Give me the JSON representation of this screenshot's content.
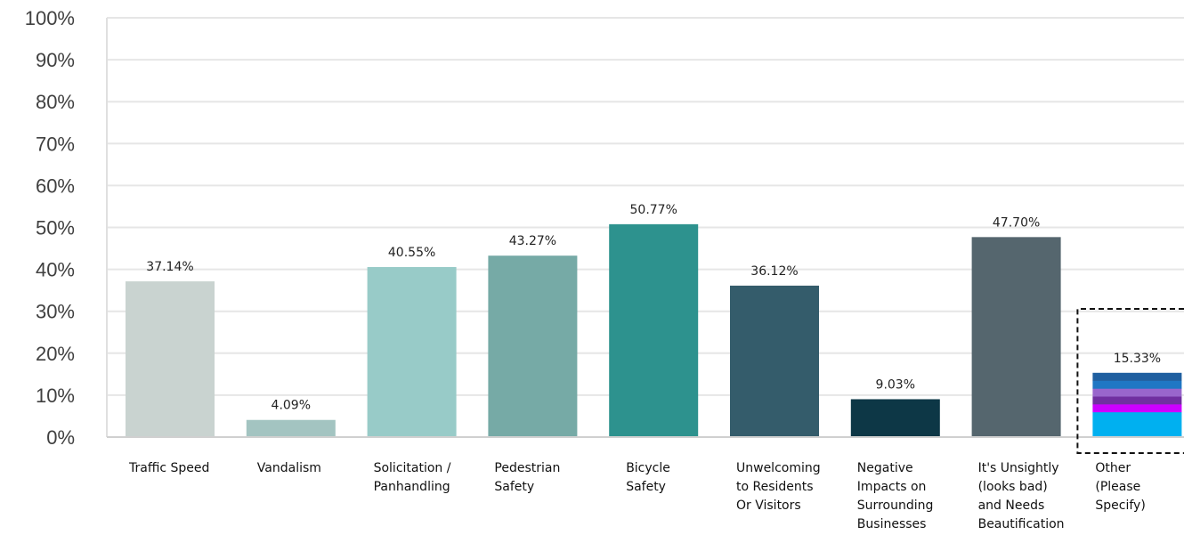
{
  "chart_data": {
    "type": "bar",
    "title": "",
    "xlabel": "",
    "ylabel": "",
    "ylim": [
      0,
      100
    ],
    "yticks": [
      "0%",
      "10%",
      "20%",
      "30%",
      "40%",
      "50%",
      "60%",
      "70%",
      "80%",
      "90%",
      "100%"
    ],
    "grid": true,
    "legend": "none",
    "categories": [
      [
        "Traffic Speed"
      ],
      [
        "Vandalism"
      ],
      [
        "Solicitation /",
        "Panhandling"
      ],
      [
        "Pedestrian",
        "Safety"
      ],
      [
        "Bicycle",
        "Safety"
      ],
      [
        "Unwelcoming",
        "to Residents",
        "Or Visitors"
      ],
      [
        "Negative",
        "Impacts on",
        "Surrounding",
        "Businesses"
      ],
      [
        "It's Unsightly",
        "(looks bad)",
        "and Needs",
        "Beautification"
      ],
      [
        "Other",
        "(Please",
        "Specify)"
      ]
    ],
    "values": [
      37.14,
      4.09,
      40.55,
      43.27,
      50.77,
      36.12,
      9.03,
      47.7,
      15.33
    ],
    "data_labels": [
      "37.14%",
      "4.09%",
      "40.55%",
      "43.27%",
      "50.77%",
      "36.12%",
      "9.03%",
      "47.70%",
      "15.33%"
    ],
    "colors": [
      "#c9d3d0",
      "#a3c4c1",
      "#98cbc8",
      "#76aaa6",
      "#2d928e",
      "#345c6b",
      "#0d3746",
      "#55666e",
      "#1e86d0"
    ],
    "highlight": {
      "category_index": 8,
      "style": "dashed-box",
      "stripe_colors": [
        "#00b0f0",
        "#cc00ff",
        "#7030a0",
        "#9966cc",
        "#1f77c4",
        "#1f5fa0"
      ]
    }
  }
}
